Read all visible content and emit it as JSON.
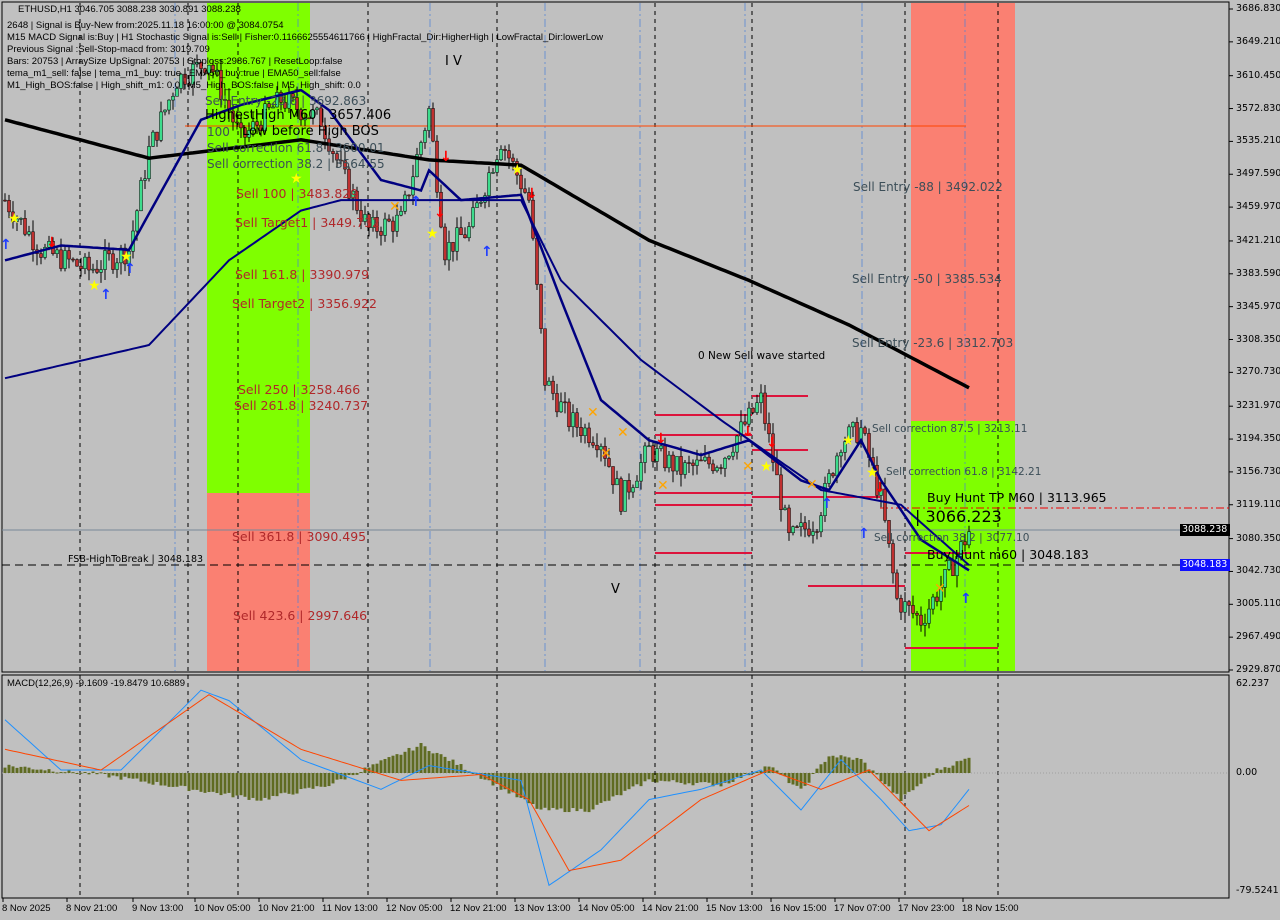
{
  "header": {
    "symbol_line": "ETHUSD,H1  3046.705 3088.238 3030.891 3088.238",
    "info_lines": [
      "2648 | Signal is Buy-New from:2025.11.18 16:00:00 @ 3084.0754",
      "M15 MACD Signal is:Buy | H1 Stochastic Signal is:Sell | Fisher:0.1166625554611766 | HighFractal_Dir:HigherHigh | LowFractal_Dir:lowerLow",
      "Previous Signal :Sell-Stop-macd from: 3019.709",
      "Bars: 20753 | ArraySize UpSignal: 20753 | Stoploss:2986.767 | ResetLoop:false",
      "tema_m1_sell: false | tema_m1_buy: true | EMA50_buy:true | EMA50_sell:false",
      "M1_High_BOS:false | High_shift_m1: 0.0 | M5_High_BOS:false | M5_High_shift: 0.0"
    ]
  },
  "annotations": {
    "sell_entry_23_top": "Sell Entry -23.6 | 3692.863",
    "highest_high": "HighestHigh  M60 | 3657.406",
    "sell_100_top": "100",
    "sell_correction_618_top": "Sell correction 61.8 | 3600.01",
    "low_before_bos": "Low before High  BOS",
    "sell_correction_top2": "Sell correction 38.2 | 3564.55",
    "wave_iv": "I V",
    "sell_100": "Sell 100 | 3483.829",
    "sell_target1": "Sell Target1 | 3449.732",
    "sell_1618": "Sell 161.8 | 3390.979",
    "sell_target2": "Sell Target2 | 3356.922",
    "sell_250": "Sell  250 | 3258.466",
    "sell_2618": "Sell  261.8 | 3240.737",
    "sell_3618": "Sell  361.8 | 3090.495",
    "sell_4236": "Sell  423.6 | 2997.646",
    "fsb": "FSB-HighToBreak | 3048.183",
    "wave_v": "V",
    "new_sell_wave": "0 New Sell wave started",
    "sell_entry_88": "Sell Entry -88 | 3492.022",
    "sell_entry_50": "Sell Entry -50 | 3385.534",
    "sell_entry_236": "Sell Entry -23.6 | 3312.703",
    "sell_correction_875": "Sell correction 87.5 | 3213.11",
    "sell_correction_618": "Sell correction 61.8 | 3142.21",
    "buy_hunt_tp": "Buy Hunt TP M60 | 3113.965",
    "level_3066": "| 3066.223",
    "sell_correction_382": "Sell correction 38.2 | 3077.10",
    "buy_hunt_m60": "Buy Hunt  m60 | 3048.183"
  },
  "price_boxes": {
    "current": "3088.238",
    "fsb": "3048.183"
  },
  "colors": {
    "background": "#c0c0c0",
    "green_zone": "#7fff00",
    "salmon_zone": "#fa8072",
    "bull": "#3ddc8c",
    "bear": "#c03030",
    "ma_slow": "#000000",
    "ma_navy": "#000080",
    "macd_hist": "#5f6b22",
    "macd_main": "#1e90ff",
    "macd_signal": "#ff4500"
  },
  "macd": {
    "label": "MACD(12,26,9) -9.1609 -19.8479 10.6889",
    "ticks": [
      "62.237",
      "0.00",
      "-79.5241"
    ]
  },
  "chart_data": {
    "type": "candlestick",
    "symbol": "ETHUSD",
    "timeframe": "H1",
    "ylim": [
      2929.87,
      3686.83
    ],
    "y_ticks": [
      "3686.830",
      "3649.210",
      "3610.450",
      "3572.830",
      "3535.210",
      "3497.590",
      "3459.970",
      "3421.210",
      "3383.590",
      "3345.970",
      "3308.350",
      "3270.730",
      "3231.970",
      "3194.350",
      "3156.730",
      "3119.110",
      "3080.350",
      "3042.730",
      "3005.110",
      "2967.490",
      "2929.870"
    ],
    "x_ticks": [
      "8 Nov 2025",
      "8 Nov 21:00",
      "9 Nov 13:00",
      "10 Nov 05:00",
      "10 Nov 21:00",
      "11 Nov 13:00",
      "12 Nov 05:00",
      "12 Nov 21:00",
      "13 Nov 13:00",
      "14 Nov 05:00",
      "14 Nov 21:00",
      "15 Nov 13:00",
      "16 Nov 15:00",
      "17 Nov 07:00",
      "17 Nov 23:00",
      "18 Nov 15:00"
    ],
    "bars": 242,
    "close_path": [
      [
        0,
        3468
      ],
      [
        9,
        3411
      ],
      [
        21,
        3388
      ],
      [
        31,
        3411
      ],
      [
        36,
        3525
      ],
      [
        43,
        3606
      ],
      [
        51,
        3628
      ],
      [
        59,
        3537
      ],
      [
        69,
        3583
      ],
      [
        79,
        3560
      ],
      [
        85,
        3491
      ],
      [
        91,
        3434
      ],
      [
        99,
        3445
      ],
      [
        106,
        3571
      ],
      [
        110,
        3411
      ],
      [
        116,
        3434
      ],
      [
        124,
        3537
      ],
      [
        131,
        3468
      ],
      [
        135,
        3262
      ],
      [
        141,
        3216
      ],
      [
        149,
        3193
      ],
      [
        154,
        3125
      ],
      [
        161,
        3182
      ],
      [
        169,
        3159
      ],
      [
        179,
        3170
      ],
      [
        189,
        3239
      ],
      [
        196,
        3079
      ],
      [
        203,
        3102
      ],
      [
        209,
        3193
      ],
      [
        214,
        3205
      ],
      [
        219,
        3125
      ],
      [
        223,
        3010
      ],
      [
        229,
        2987
      ],
      [
        235,
        3033
      ],
      [
        241,
        3088.238
      ]
    ],
    "ma_slow": [
      [
        0,
        3560
      ],
      [
        36,
        3516
      ],
      [
        74,
        3537
      ],
      [
        106,
        3514
      ],
      [
        129,
        3508
      ],
      [
        161,
        3422
      ],
      [
        186,
        3376
      ],
      [
        211,
        3325
      ],
      [
        241,
        3253
      ]
    ],
    "ma_mid": [
      [
        0,
        3264
      ],
      [
        36,
        3302
      ],
      [
        56,
        3399
      ],
      [
        74,
        3456
      ],
      [
        84,
        3468
      ],
      [
        104,
        3468
      ],
      [
        129,
        3468
      ],
      [
        139,
        3376
      ],
      [
        159,
        3285
      ],
      [
        179,
        3216
      ],
      [
        204,
        3136
      ],
      [
        224,
        3119
      ],
      [
        241,
        3050
      ]
    ],
    "ma_fast": [
      [
        0,
        3399
      ],
      [
        14,
        3416
      ],
      [
        31,
        3411
      ],
      [
        49,
        3560
      ],
      [
        59,
        3577
      ],
      [
        74,
        3594
      ],
      [
        81,
        3571
      ],
      [
        94,
        3491
      ],
      [
        104,
        3479
      ],
      [
        106,
        3502
      ],
      [
        114,
        3468
      ],
      [
        129,
        3474
      ],
      [
        139,
        3354
      ],
      [
        149,
        3239
      ],
      [
        161,
        3193
      ],
      [
        174,
        3176
      ],
      [
        186,
        3193
      ],
      [
        199,
        3147
      ],
      [
        206,
        3136
      ],
      [
        214,
        3193
      ],
      [
        219,
        3147
      ],
      [
        229,
        3079
      ],
      [
        241,
        3044
      ]
    ],
    "macd_main": [
      [
        0,
        36
      ],
      [
        14,
        2
      ],
      [
        29,
        2
      ],
      [
        49,
        56
      ],
      [
        56,
        49
      ],
      [
        74,
        9
      ],
      [
        94,
        -11
      ],
      [
        106,
        5
      ],
      [
        129,
        -5
      ],
      [
        136,
        -76
      ],
      [
        149,
        -52
      ],
      [
        161,
        -18
      ],
      [
        174,
        -11
      ],
      [
        189,
        2
      ],
      [
        199,
        -25
      ],
      [
        209,
        9
      ],
      [
        219,
        -18
      ],
      [
        226,
        -39
      ],
      [
        234,
        -35
      ],
      [
        241,
        -11
      ]
    ],
    "macd_signal": [
      [
        0,
        16
      ],
      [
        24,
        2
      ],
      [
        51,
        53
      ],
      [
        74,
        16
      ],
      [
        99,
        -5
      ],
      [
        119,
        -1
      ],
      [
        131,
        -18
      ],
      [
        141,
        -66
      ],
      [
        154,
        -59
      ],
      [
        174,
        -18
      ],
      [
        191,
        2
      ],
      [
        204,
        -11
      ],
      [
        216,
        2
      ],
      [
        231,
        -39
      ],
      [
        241,
        -22
      ]
    ],
    "macd_hist": [
      [
        0,
        5
      ],
      [
        24,
        -1
      ],
      [
        49,
        -12
      ],
      [
        64,
        -18
      ],
      [
        81,
        -8
      ],
      [
        104,
        19
      ],
      [
        116,
        2
      ],
      [
        134,
        -25
      ],
      [
        146,
        -25
      ],
      [
        161,
        -5
      ],
      [
        179,
        -8
      ],
      [
        191,
        5
      ],
      [
        199,
        -12
      ],
      [
        206,
        12
      ],
      [
        214,
        9
      ],
      [
        224,
        -18
      ],
      [
        233,
        2
      ],
      [
        241,
        10
      ]
    ],
    "macd_ylim": [
      -79.5241,
      62.237
    ]
  }
}
